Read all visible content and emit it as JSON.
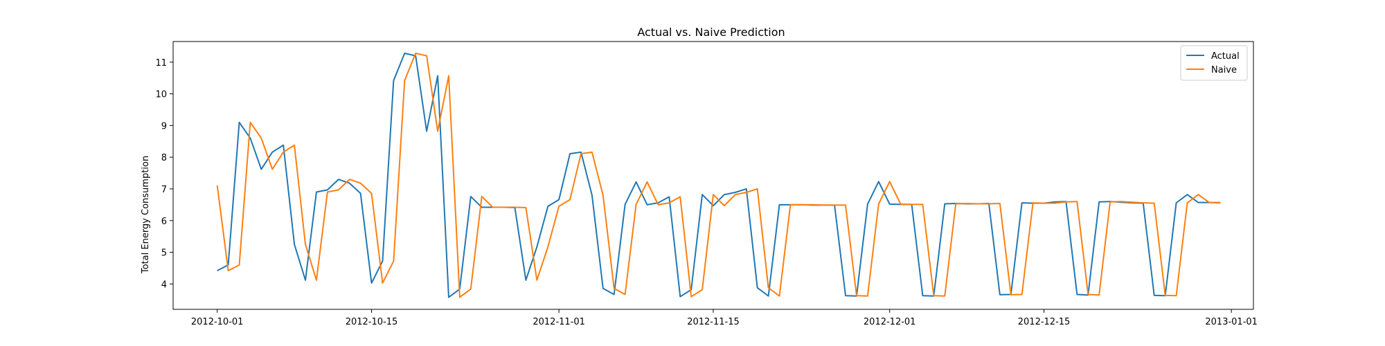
{
  "chart_data": {
    "type": "line",
    "title": "Actual vs. Naive Prediction",
    "xlabel": "",
    "ylabel": "Total Energy Consumption",
    "x_start": "2012-10-01",
    "xlim": [
      "2012-09-27",
      "2013-01-03"
    ],
    "ylim": [
      3.2,
      11.65
    ],
    "x_ticks": [
      "2012-10-01",
      "2012-10-15",
      "2012-11-01",
      "2012-11-15",
      "2012-12-01",
      "2012-12-15",
      "2013-01-01"
    ],
    "y_ticks": [
      4,
      5,
      6,
      7,
      8,
      9,
      10,
      11
    ],
    "legend_position": "top-right",
    "grid": false,
    "series": [
      {
        "name": "Actual",
        "color": "#1f77b4",
        "values": [
          4.42,
          4.6,
          9.1,
          8.6,
          7.62,
          8.16,
          8.38,
          5.25,
          4.12,
          6.9,
          6.97,
          7.3,
          7.18,
          6.86,
          4.03,
          4.72,
          10.42,
          11.28,
          11.2,
          8.82,
          10.57,
          3.58,
          3.84,
          6.76,
          6.42,
          6.42,
          6.42,
          6.41,
          4.12,
          5.17,
          6.45,
          6.66,
          8.11,
          8.16,
          6.8,
          3.86,
          3.67,
          6.51,
          7.22,
          6.5,
          6.56,
          6.75,
          3.6,
          3.82,
          6.82,
          6.47,
          6.82,
          6.89,
          7.0,
          3.88,
          3.62,
          6.5,
          6.5,
          6.5,
          6.49,
          6.49,
          6.49,
          3.63,
          3.62,
          6.52,
          7.23,
          6.52,
          6.51,
          6.51,
          3.63,
          3.62,
          6.53,
          6.54,
          6.53,
          6.53,
          6.54,
          3.66,
          3.67,
          6.56,
          6.55,
          6.55,
          6.59,
          6.6,
          3.67,
          3.65,
          6.59,
          6.6,
          6.58,
          6.56,
          6.55,
          3.64,
          3.63,
          6.56,
          6.82,
          6.57,
          6.57,
          6.56
        ],
        "naive_note": ""
      },
      {
        "name": "Naive",
        "color": "#ff7f0e",
        "values": [
          7.11,
          4.42,
          4.6,
          9.1,
          8.6,
          7.62,
          8.16,
          8.38,
          5.25,
          4.12,
          6.9,
          6.97,
          7.3,
          7.18,
          6.86,
          4.03,
          4.72,
          10.42,
          11.28,
          11.2,
          8.82,
          10.57,
          3.58,
          3.84,
          6.76,
          6.42,
          6.42,
          6.42,
          6.41,
          4.12,
          5.17,
          6.45,
          6.66,
          8.11,
          8.16,
          6.8,
          3.86,
          3.67,
          6.51,
          7.22,
          6.5,
          6.56,
          6.75,
          3.6,
          3.82,
          6.82,
          6.47,
          6.82,
          6.89,
          7.0,
          3.88,
          3.62,
          6.5,
          6.5,
          6.5,
          6.49,
          6.49,
          6.49,
          3.63,
          3.62,
          6.52,
          7.23,
          6.52,
          6.51,
          6.51,
          3.63,
          3.62,
          6.53,
          6.54,
          6.53,
          6.53,
          6.54,
          3.66,
          3.67,
          6.56,
          6.55,
          6.55,
          6.59,
          6.6,
          3.67,
          3.65,
          6.59,
          6.6,
          6.58,
          6.56,
          6.55,
          3.64,
          3.63,
          6.56,
          6.82,
          6.57,
          6.57
        ]
      }
    ]
  }
}
